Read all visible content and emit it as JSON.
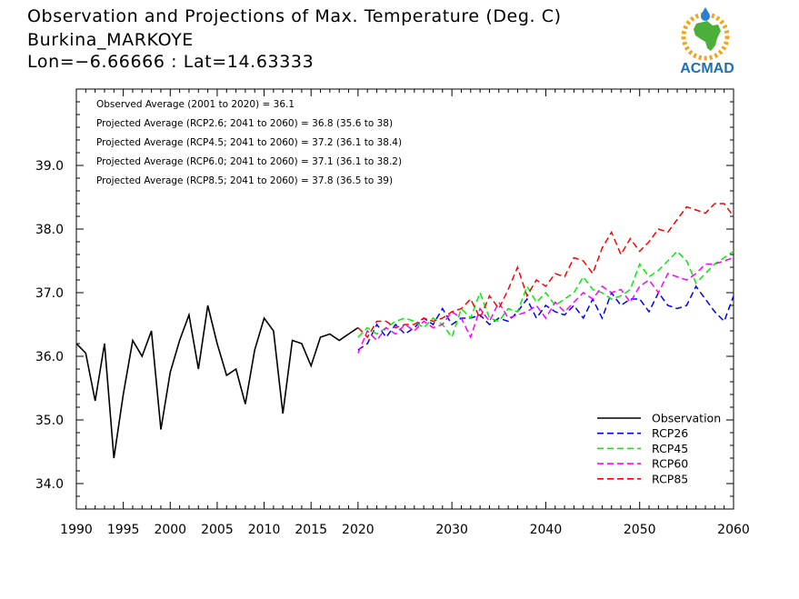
{
  "header": {
    "title": "Observation and Projections of Max. Temperature (Deg. C)",
    "location": "Burkina_MARKOYE",
    "coords": "Lon=−6.66666 : Lat=14.63333"
  },
  "logo": {
    "text": "ACMAD",
    "colors": {
      "text": "#1e6fb7",
      "africa": "#4caf3a",
      "rays": "#f5a31a",
      "drop": "#2a7fd0"
    }
  },
  "annotations": [
    "Observed Average (2001 to 2020) = 36.1",
    "Projected Average (RCP2.6; 2041 to 2060) = 36.8 (35.6 to 38)",
    "Projected Average (RCP4.5; 2041 to 2060) = 37.2 (36.1 to 38.4)",
    "Projected Average (RCP6.0; 2041 to 2060) = 37.1 (36.1 to 38.2)",
    "Projected Average (RCP8.5; 2041 to 2060) = 37.8 (36.5 to 39)"
  ],
  "chart_data": {
    "type": "line",
    "xlim": [
      1990,
      2060
    ],
    "ylim": [
      33.6,
      40.2
    ],
    "x_ticks": [
      1990,
      1995,
      2000,
      2005,
      2010,
      2015,
      2020,
      2030,
      2040,
      2050,
      2060
    ],
    "y_ticks": [
      34.0,
      35.0,
      36.0,
      37.0,
      38.0,
      39.0
    ],
    "y_tick_labels": [
      "34.0",
      "35.0",
      "36.0",
      "37.0",
      "38.0",
      "39.0"
    ],
    "grid": false,
    "legend_position": "bottom-right",
    "series": [
      {
        "name": "Observation",
        "style": "solid",
        "color": "#000000",
        "x": [
          1990,
          1991,
          1992,
          1993,
          1994,
          1995,
          1996,
          1997,
          1998,
          1999,
          2000,
          2001,
          2002,
          2003,
          2004,
          2005,
          2006,
          2007,
          2008,
          2009,
          2010,
          2011,
          2012,
          2013,
          2014,
          2015,
          2016,
          2017,
          2018,
          2019,
          2020
        ],
        "values": [
          36.2,
          36.05,
          35.3,
          36.2,
          34.4,
          35.4,
          36.25,
          36.0,
          36.4,
          34.85,
          35.75,
          36.25,
          36.65,
          35.8,
          36.8,
          36.2,
          35.7,
          35.8,
          35.25,
          36.1,
          36.6,
          36.4,
          35.1,
          36.25,
          36.2,
          35.85,
          36.3,
          36.35,
          36.25,
          36.35,
          36.45
        ]
      },
      {
        "name": "RCP26",
        "style": "dashed",
        "color": "#0000ff",
        "x": [
          2020,
          2021,
          2022,
          2023,
          2024,
          2025,
          2026,
          2027,
          2028,
          2029,
          2030,
          2031,
          2032,
          2033,
          2034,
          2035,
          2036,
          2037,
          2038,
          2039,
          2040,
          2041,
          2042,
          2043,
          2044,
          2045,
          2046,
          2047,
          2048,
          2049,
          2050,
          2051,
          2052,
          2053,
          2054,
          2055,
          2056,
          2057,
          2058,
          2059,
          2060
        ],
        "values": [
          36.1,
          36.2,
          36.5,
          36.3,
          36.5,
          36.35,
          36.45,
          36.6,
          36.5,
          36.75,
          36.5,
          36.6,
          36.6,
          36.65,
          36.5,
          36.6,
          36.55,
          36.7,
          36.9,
          36.6,
          36.8,
          36.7,
          36.65,
          36.8,
          36.6,
          36.9,
          36.6,
          37.0,
          36.8,
          36.9,
          36.9,
          36.7,
          37.0,
          36.8,
          36.75,
          36.8,
          37.1,
          36.9,
          36.7,
          36.55,
          36.95
        ]
      },
      {
        "name": "RCP45",
        "style": "dashed",
        "color": "#00ee00",
        "x": [
          2020,
          2021,
          2022,
          2023,
          2024,
          2025,
          2026,
          2027,
          2028,
          2029,
          2030,
          2031,
          2032,
          2033,
          2034,
          2035,
          2036,
          2037,
          2038,
          2039,
          2040,
          2041,
          2042,
          2043,
          2044,
          2045,
          2046,
          2047,
          2048,
          2049,
          2050,
          2051,
          2052,
          2053,
          2054,
          2055,
          2056,
          2057,
          2058,
          2059,
          2060
        ],
        "values": [
          36.3,
          36.45,
          36.35,
          36.45,
          36.55,
          36.6,
          36.55,
          36.45,
          36.6,
          36.5,
          36.3,
          36.75,
          36.6,
          37.0,
          36.6,
          36.55,
          36.75,
          36.7,
          37.1,
          36.85,
          37.0,
          36.8,
          36.9,
          37.0,
          37.25,
          37.05,
          37.0,
          36.9,
          36.95,
          37.05,
          37.45,
          37.25,
          37.35,
          37.5,
          37.65,
          37.5,
          37.15,
          37.3,
          37.45,
          37.55,
          37.65
        ]
      },
      {
        "name": "RCP60",
        "style": "dashed",
        "color": "#ff00ff",
        "x": [
          2020,
          2021,
          2022,
          2023,
          2024,
          2025,
          2026,
          2027,
          2028,
          2029,
          2030,
          2031,
          2032,
          2033,
          2034,
          2035,
          2036,
          2037,
          2038,
          2039,
          2040,
          2041,
          2042,
          2043,
          2044,
          2045,
          2046,
          2047,
          2048,
          2049,
          2050,
          2051,
          2052,
          2053,
          2054,
          2055,
          2056,
          2057,
          2058,
          2059,
          2060
        ],
        "values": [
          36.05,
          36.4,
          36.25,
          36.45,
          36.35,
          36.5,
          36.4,
          36.55,
          36.45,
          36.5,
          36.7,
          36.6,
          36.3,
          36.75,
          36.55,
          36.85,
          36.6,
          36.65,
          36.7,
          36.8,
          36.6,
          36.85,
          36.7,
          36.85,
          37.0,
          36.9,
          37.1,
          37.0,
          37.05,
          36.85,
          37.1,
          37.2,
          37.0,
          37.3,
          37.25,
          37.2,
          37.3,
          37.45,
          37.45,
          37.5,
          37.55
        ]
      },
      {
        "name": "RCP85",
        "style": "dashed",
        "color": "#ff0000",
        "x": [
          2020,
          2021,
          2022,
          2023,
          2024,
          2025,
          2026,
          2027,
          2028,
          2029,
          2030,
          2031,
          2032,
          2033,
          2034,
          2035,
          2036,
          2037,
          2038,
          2039,
          2040,
          2041,
          2042,
          2043,
          2044,
          2045,
          2046,
          2047,
          2048,
          2049,
          2050,
          2051,
          2052,
          2053,
          2054,
          2055,
          2056,
          2057,
          2058,
          2059,
          2060
        ],
        "values": [
          36.45,
          36.3,
          36.55,
          36.55,
          36.45,
          36.5,
          36.5,
          36.6,
          36.55,
          36.6,
          36.7,
          36.75,
          36.9,
          36.6,
          36.95,
          36.75,
          37.05,
          37.4,
          36.95,
          37.2,
          37.1,
          37.3,
          37.25,
          37.55,
          37.5,
          37.3,
          37.7,
          37.95,
          37.6,
          37.85,
          37.65,
          37.8,
          38.0,
          37.95,
          38.15,
          38.35,
          38.3,
          38.25,
          38.4,
          38.4,
          38.2
        ]
      }
    ]
  }
}
